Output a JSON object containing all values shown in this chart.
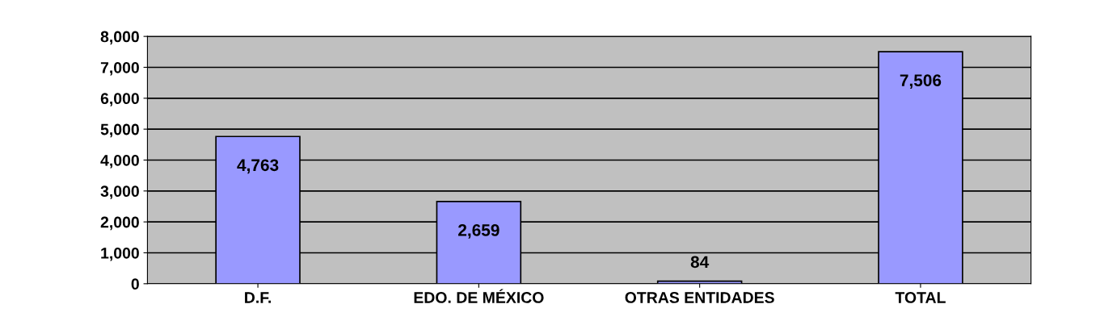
{
  "chart_data": {
    "type": "bar",
    "categories": [
      "D.F.",
      "EDO. DE MÉXICO",
      "OTRAS ENTIDADES",
      "TOTAL"
    ],
    "values": [
      4763,
      2659,
      84,
      7506
    ],
    "value_labels": [
      "4,763",
      "2,659",
      "84",
      "7,506"
    ],
    "color": "#9999ff",
    "ylim": [
      0,
      8000
    ],
    "yticks": [
      0,
      {
        "value": 1000,
        "label": "1,000"
      },
      {
        "value": 2000,
        "label": "2,000"
      },
      {
        "value": 3000,
        "label": "3,000"
      },
      {
        "value": 4000,
        "label": "4,000"
      },
      {
        "value": 5000,
        "label": "5,000"
      },
      {
        "value": 6000,
        "label": "6,000"
      },
      {
        "value": 7000,
        "label": "7,000"
      },
      {
        "value": 8000,
        "label": "8,000"
      }
    ],
    "grid": "y",
    "legend": false
  }
}
